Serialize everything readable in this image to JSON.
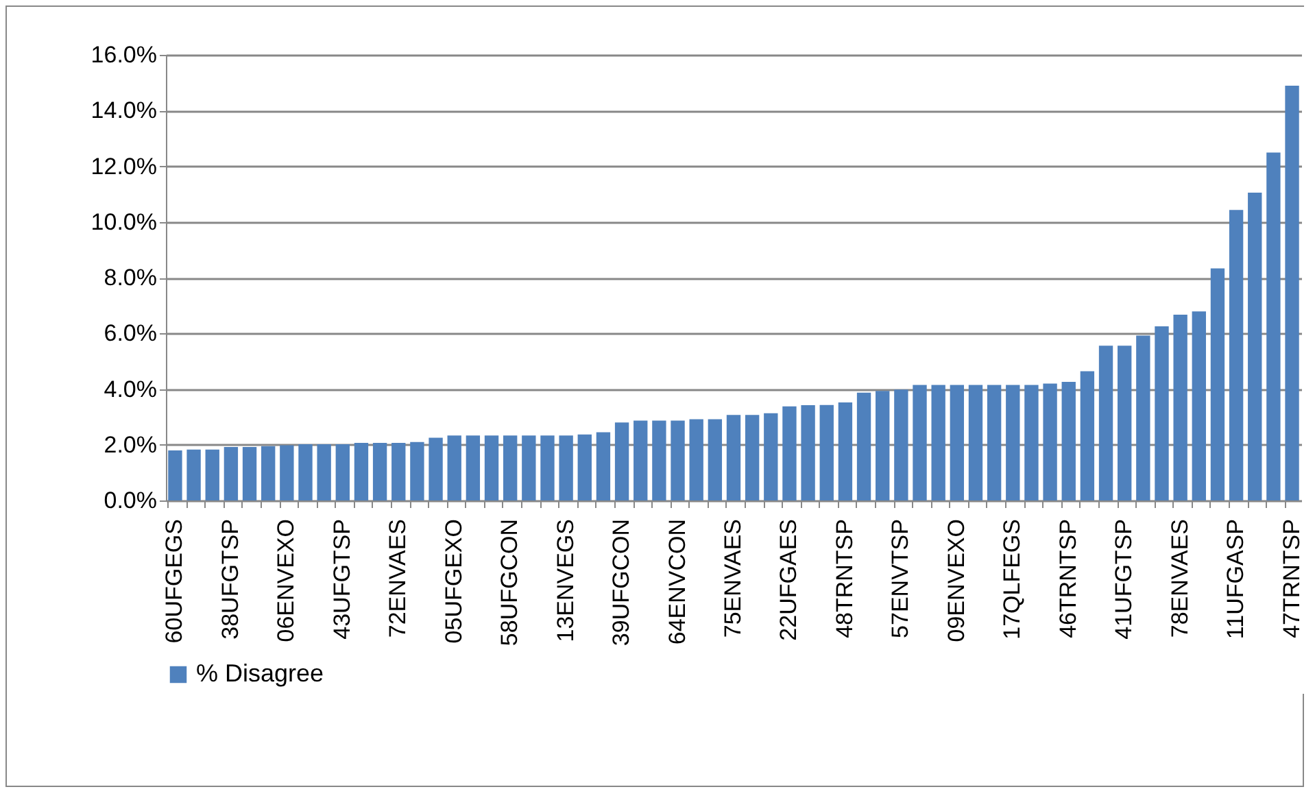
{
  "chart_data": {
    "type": "bar",
    "categories": [
      "60UFGEGS",
      null,
      null,
      "38UFGTSP",
      null,
      null,
      "06ENVEXO",
      null,
      null,
      "43UFGTSP",
      null,
      null,
      "72ENVAES",
      null,
      null,
      "05UFGEXO",
      null,
      null,
      "58UFGCON",
      null,
      null,
      "13ENVEGS",
      null,
      null,
      "39UFGCON",
      null,
      null,
      "64ENVCON",
      null,
      null,
      "75ENVAES",
      null,
      null,
      "22UFGAES",
      null,
      null,
      "48TRNTSP",
      null,
      null,
      "57ENVTSP",
      null,
      null,
      "09ENVEXO",
      null,
      null,
      "17QLFEGS",
      null,
      null,
      "46TRNTSP",
      null,
      null,
      "41UFGTSP",
      null,
      null,
      "78ENVAES",
      null,
      null,
      "11UFGASP",
      null,
      null,
      "47TRNTSP"
    ],
    "series": [
      {
        "name": "% Disagree",
        "color": "#4f81bd",
        "values": [
          1.8,
          1.83,
          1.83,
          1.92,
          1.92,
          1.95,
          1.98,
          2.02,
          2.02,
          2.02,
          2.07,
          2.07,
          2.07,
          2.1,
          2.25,
          2.33,
          2.33,
          2.33,
          2.33,
          2.33,
          2.33,
          2.33,
          2.37,
          2.45,
          2.8,
          2.87,
          2.87,
          2.87,
          2.92,
          2.92,
          3.07,
          3.07,
          3.13,
          3.38,
          3.42,
          3.43,
          3.52,
          3.87,
          3.93,
          3.98,
          4.15,
          4.15,
          4.15,
          4.15,
          4.15,
          4.15,
          4.15,
          4.2,
          4.26,
          4.64,
          5.56,
          5.56,
          5.92,
          6.25,
          6.67,
          6.79,
          8.33,
          10.43,
          11.05,
          12.49,
          14.89
        ]
      }
    ],
    "ylim": [
      0,
      16
    ],
    "yticks": [
      {
        "value": 0,
        "label": "0.0%"
      },
      {
        "value": 2,
        "label": "2.0%"
      },
      {
        "value": 4,
        "label": "4.0%"
      },
      {
        "value": 6,
        "label": "6.0%"
      },
      {
        "value": 8,
        "label": "8.0%"
      },
      {
        "value": 10,
        "label": "10.0%"
      },
      {
        "value": 12,
        "label": "12.0%"
      },
      {
        "value": 14,
        "label": "14.0%"
      },
      {
        "value": 16,
        "label": "16.0%"
      }
    ],
    "grid": "y",
    "legend": "bottom"
  }
}
